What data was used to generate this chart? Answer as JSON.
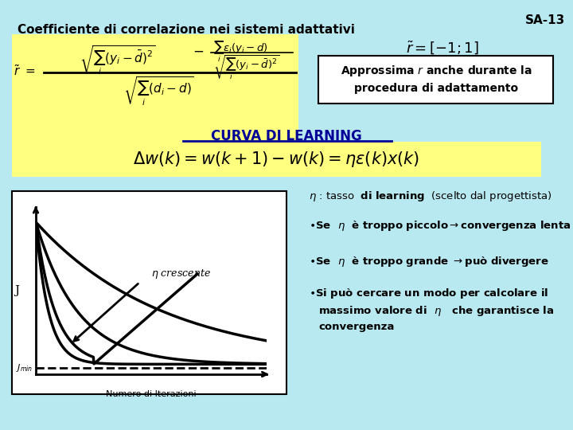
{
  "slide_id": "SA-13",
  "bg_color": "#b8e8f0",
  "formula_bg": "#ffff80",
  "title": "Coefficiente di correlazione nei sistemi adattativi",
  "r_range_text": "$\\tilde{r} = [-1;1]$",
  "approx_text1": "Approssima $r$ anche durante la",
  "approx_text2": "procedura di adattamento",
  "curva_title": "CURVA DI LEARNING",
  "dw_formula": "$\\Delta w(k) = w(k+1) - w(k) = \\eta\\varepsilon(k)x(k)$",
  "bullet0": "$\\eta$ : tasso  $\\mathbf{di\\ learning}$  (scelto dal progettista)",
  "bullet1": "$\\bullet$Se  $\\eta$  è troppo piccolo$\\rightarrow$convergenza lenta",
  "bullet2": "$\\bullet$Se  $\\eta$  è troppo grande $\\rightarrow$può divergere",
  "bullet3a": "$\\bullet$Si può cercare un modo per calcolare il",
  "bullet3b": "massimo valore di  $\\eta$   che garantisce la",
  "bullet3c": "convergenza",
  "graph_xlabel": "Numero di Iterazioni",
  "graph_ylabel": "J",
  "graph_jmin": "$J_{min}$",
  "eta_label": "$\\eta$ crescente"
}
